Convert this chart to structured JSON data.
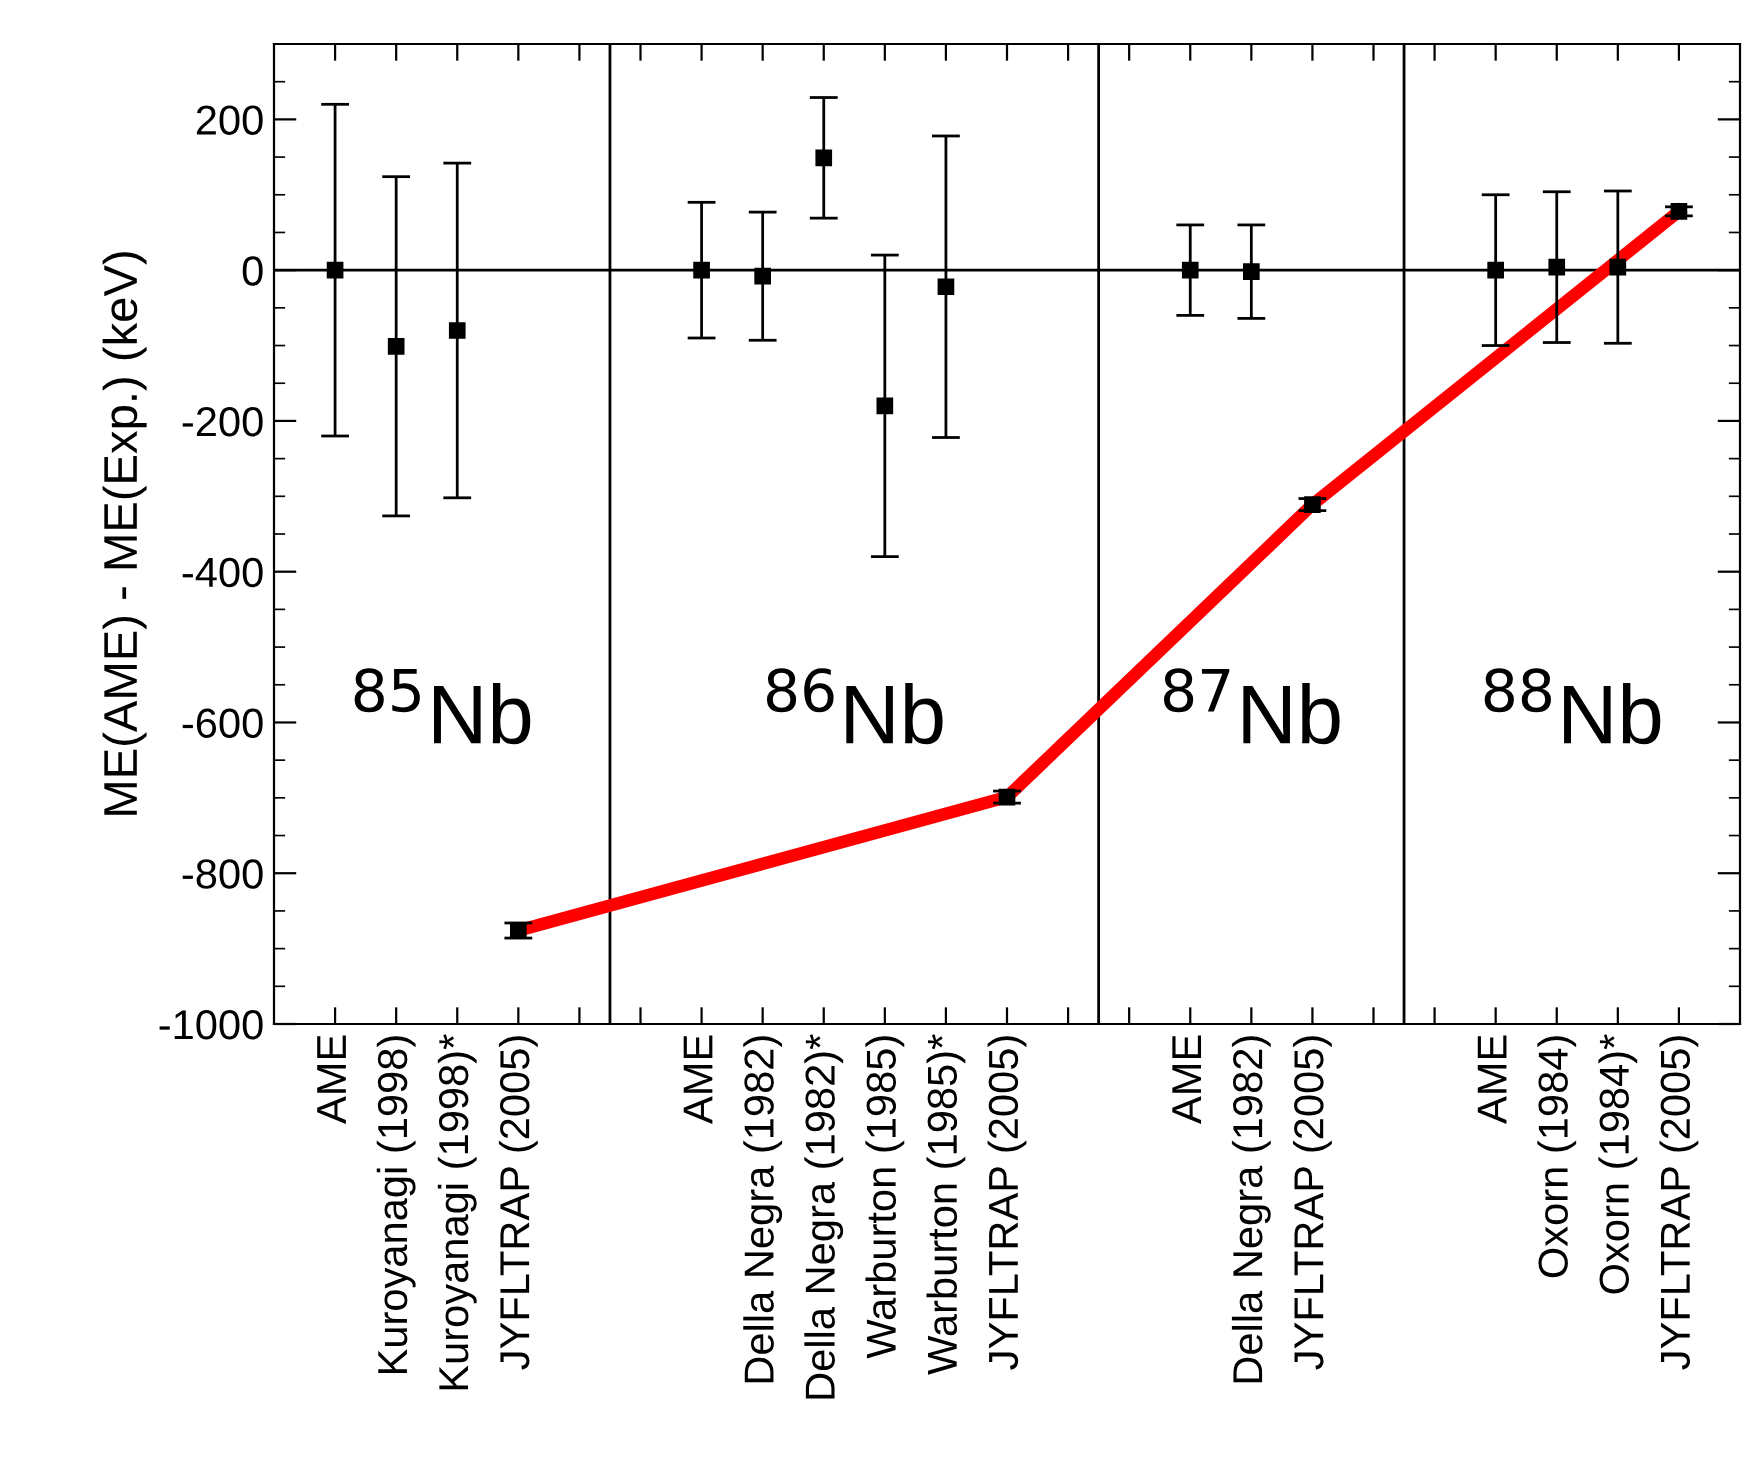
{
  "chart_data": {
    "type": "scatter",
    "ylabel": "ME(AME) - ME(Exp.) (keV)",
    "categories": [
      "AME",
      "Kuroyanagi (1998)",
      "Kuroyanagi (1998)*",
      "JYFLTRAP (2005)",
      null,
      null,
      "AME",
      "Della Negra (1982)",
      "Della Negra (1982)*",
      "Warburton (1985)",
      "Warburton (1985)*",
      "JYFLTRAP (2005)",
      null,
      null,
      "AME",
      "Della Negra (1982)",
      "JYFLTRAP (2005)",
      null,
      null,
      "AME",
      "Oxorn (1984)",
      "Oxorn (1984)*",
      "JYFLTRAP (2005)"
    ],
    "series": [
      {
        "color": "#000000",
        "marker": "square",
        "values": [
          0,
          -101,
          -80,
          -876,
          null,
          null,
          0,
          -8,
          149,
          -180,
          -22,
          -699,
          null,
          null,
          0,
          -2,
          -311,
          null,
          null,
          0,
          4,
          4,
          78
        ],
        "errors": [
          220,
          225,
          222,
          10,
          null,
          null,
          90,
          85,
          80,
          200,
          200,
          8,
          null,
          null,
          60,
          62,
          8,
          null,
          null,
          100,
          100,
          101,
          6
        ]
      },
      {
        "type": "line",
        "color": "#ff0000",
        "line_style": "solid",
        "values": [
          null,
          null,
          null,
          -876,
          null,
          null,
          null,
          null,
          null,
          null,
          null,
          -699,
          null,
          null,
          null,
          null,
          -311,
          null,
          null,
          null,
          null,
          null,
          78
        ]
      }
    ],
    "ylim": [
      -1000,
      300
    ],
    "yticks": [
      -1000,
      -800,
      -600,
      -400,
      -200,
      0,
      200
    ],
    "ref_lines": [
      {
        "axis": "y",
        "value": 0,
        "color": "#000000"
      }
    ],
    "annotations": [
      "$^{85}$Nb",
      "$^{86}$Nb",
      "$^{87}$Nb",
      "$^{88}$Nb"
    ],
    "grid": false,
    "legend": false
  }
}
